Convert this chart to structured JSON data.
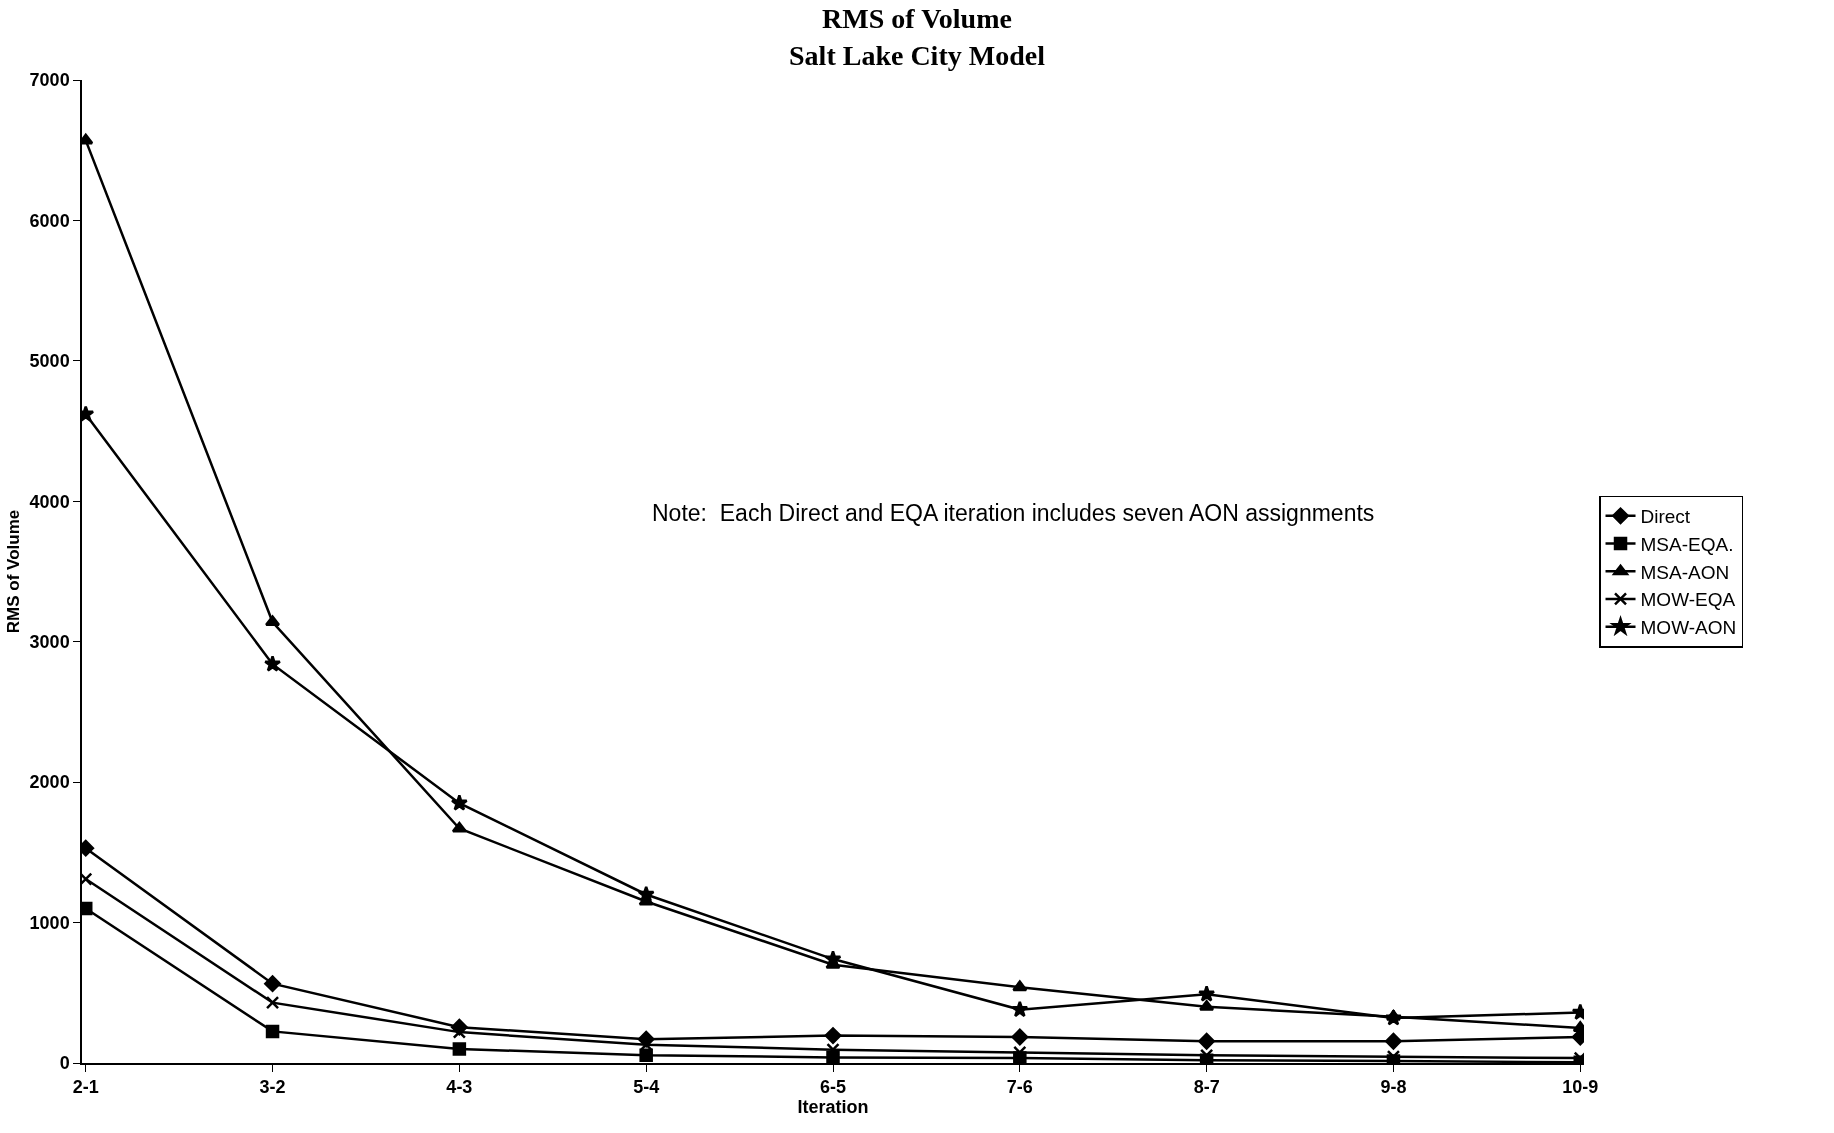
{
  "chart_data": {
    "type": "line",
    "title": "RMS of Volume\nSalt Lake City Model",
    "xlabel": "Iteration",
    "ylabel": "RMS of Volume",
    "categories": [
      "2-1",
      "3-2",
      "4-3",
      "5-4",
      "6-5",
      "7-6",
      "8-7",
      "9-8",
      "10-9"
    ],
    "series": [
      {
        "name": "Direct",
        "color": "#000000",
        "marker": "diamond",
        "values": [
          1530,
          565,
          255,
          170,
          195,
          185,
          155,
          155,
          185
        ]
      },
      {
        "name": "MSA-EQA.",
        "color": "#000000",
        "marker": "square",
        "values": [
          1100,
          225,
          100,
          55,
          40,
          35,
          20,
          15,
          5
        ]
      },
      {
        "name": "MSA-AON",
        "color": "#000000",
        "marker": "triangle",
        "values": [
          6570,
          3140,
          1670,
          1150,
          700,
          540,
          400,
          330,
          250
        ]
      },
      {
        "name": "MOW-EQA",
        "color": "#000000",
        "marker": "cross",
        "values": [
          1310,
          430,
          220,
          130,
          95,
          75,
          55,
          45,
          35
        ]
      },
      {
        "name": "MOW-AON",
        "color": "#000000",
        "marker": "star",
        "values": [
          4620,
          2840,
          1850,
          1200,
          740,
          380,
          490,
          320,
          360
        ]
      }
    ],
    "ylim": [
      0,
      7000
    ],
    "yticks": [
      0,
      1000,
      2000,
      3000,
      4000,
      5000,
      6000,
      7000
    ],
    "legend": "right",
    "annotations": [
      "Note:  Each Direct and EQA iteration includes seven AON assignments"
    ]
  }
}
